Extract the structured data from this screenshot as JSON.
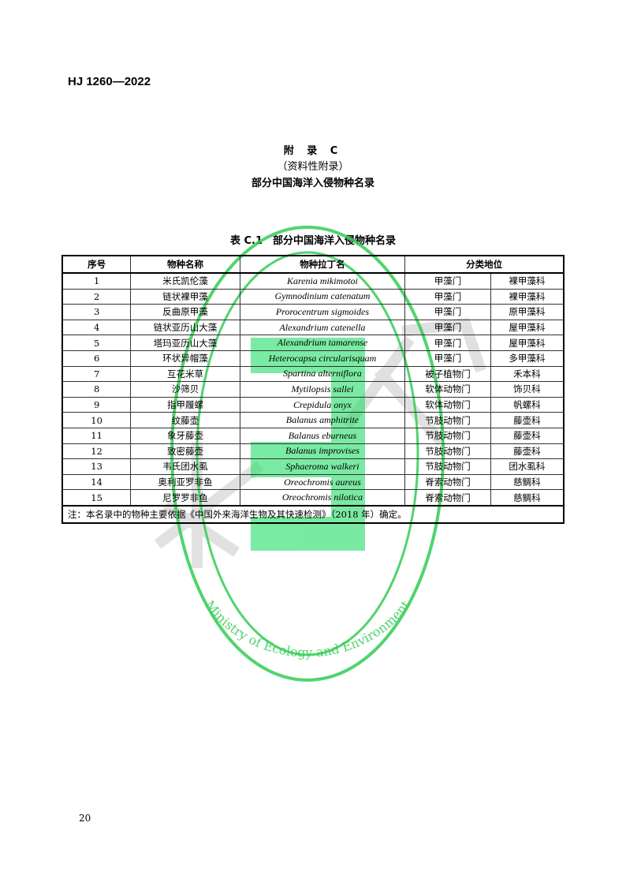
{
  "header": {
    "standard_no": "HJ 1260—2022"
  },
  "appendix": {
    "label": "附 录 C",
    "nature": "（资料性附录）",
    "title": "部分中国海洋入侵物种名录"
  },
  "table": {
    "caption": "表 C.1　部分中国海洋入侵物种名录",
    "headers": [
      "序号",
      "物种名称",
      "物种拉丁名",
      "分类地位"
    ],
    "rows": [
      [
        "1",
        "米氏凯伦藻",
        "Karenia mikimotoi",
        "甲藻门",
        "裸甲藻科"
      ],
      [
        "2",
        "链状裸甲藻",
        "Gymnodinium catenatum",
        "甲藻门",
        "裸甲藻科"
      ],
      [
        "3",
        "反曲原甲藻",
        "Prorocentrum sigmoides",
        "甲藻门",
        "原甲藻科"
      ],
      [
        "4",
        "链状亚历山大藻",
        "Alexandrium catenella",
        "甲藻门",
        "屋甲藻科"
      ],
      [
        "5",
        "塔玛亚历山大藻",
        "Alexandrium tamarense",
        "甲藻门",
        "屋甲藻科"
      ],
      [
        "6",
        "环状异帽藻",
        "Heterocapsa circularisquam",
        "甲藻门",
        "多甲藻科"
      ],
      [
        "7",
        "互花米草",
        "Spartina alterniflora",
        "被子植物门",
        "禾本科"
      ],
      [
        "8",
        "沙筛贝",
        "Mytilopsis sallei",
        "软体动物门",
        "饰贝科"
      ],
      [
        "9",
        "指甲履螺",
        "Crepidula onyx",
        "软体动物门",
        "帆螺科"
      ],
      [
        "10",
        "纹藤壶",
        "Balanus amphitrite",
        "节肢动物门",
        "藤壶科"
      ],
      [
        "11",
        "象牙藤壶",
        "Balanus eburneus",
        "节肢动物门",
        "藤壶科"
      ],
      [
        "12",
        "致密藤壶",
        "Balanus improvises",
        "节肢动物门",
        "藤壶科"
      ],
      [
        "13",
        "韦氏团水虱",
        "Sphaeroma walkeri",
        "节肢动物门",
        "团水虱科"
      ],
      [
        "14",
        "奥利亚罗非鱼",
        "Oreochromis aureus",
        "脊索动物门",
        "慈鲷科"
      ],
      [
        "15",
        "尼罗罗非鱼",
        "Oreochromis nilotica",
        "脊索动物门",
        "慈鲷科"
      ]
    ],
    "note": "注：本名录中的物种主要依据《中国外来海洋生物及其快速检测》（2018 年）确定。"
  },
  "watermark": {
    "stamp_text": "Ministry of Ecology and Environment",
    "color": "#22cc55"
  },
  "footer": {
    "page_number": "20"
  }
}
